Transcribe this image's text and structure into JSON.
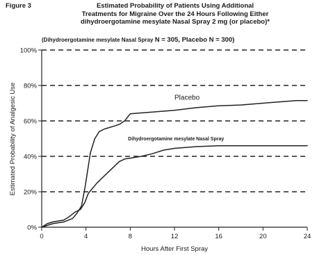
{
  "figure_label": "Figure 3",
  "title_lines": [
    "Estimated Probability of Patients Using Additional",
    "Treatments for Migraine Over the 24 Hours Following Either",
    "dihydroergotamine mesylate  Nasal Spray 2 mg (or placebo)*"
  ],
  "subtitle_small": "(Dihydroergotamine mesylate Nasal Spray",
  "subtitle_big": "N = 305, Placebo N = 300)",
  "chart_data": {
    "type": "line",
    "xlabel": "Hours After First Spray",
    "ylabel": "Estimated Probability of Analgesic Use",
    "xlim": [
      0,
      24
    ],
    "ylim": [
      0,
      100
    ],
    "x_ticks": [
      0,
      4,
      8,
      12,
      16,
      20,
      24
    ],
    "x_tick_labels": [
      "0",
      "4",
      "8",
      "12",
      "16",
      "20",
      "24"
    ],
    "y_ticks": [
      0,
      20,
      40,
      60,
      80,
      100
    ],
    "y_tick_labels": [
      "0%",
      "20%",
      "40%",
      "60%",
      "80%",
      "100%"
    ],
    "grid": "dashed horizontal",
    "series": [
      {
        "name": "Placebo",
        "label_at": [
          12,
          72
        ],
        "x": [
          0,
          0.5,
          1,
          2,
          2.8,
          3.2,
          3.6,
          3.9,
          4.1,
          4.4,
          4.8,
          5.2,
          5.7,
          6.5,
          7,
          7.5,
          8,
          9,
          10,
          12,
          14,
          16,
          18,
          20,
          22,
          23,
          24
        ],
        "y": [
          0,
          1,
          2,
          3,
          5,
          8,
          12,
          22,
          30,
          42,
          50,
          54,
          55.5,
          57,
          58,
          60,
          64,
          64.5,
          65,
          66,
          67.5,
          68.5,
          69,
          70,
          71,
          71.5,
          71.5
        ]
      },
      {
        "name": "Dihydroergotamine mesylate Nasal Spray",
        "label_at": [
          7.8,
          49
        ],
        "x": [
          0,
          0.5,
          1,
          2,
          2.5,
          3,
          3.5,
          3.9,
          4.2,
          4.6,
          5,
          5.5,
          6,
          6.5,
          7,
          7.5,
          8,
          8.5,
          9,
          10,
          11,
          12,
          14,
          16,
          18,
          20,
          22,
          24
        ],
        "y": [
          0,
          2,
          3,
          4,
          6,
          8.5,
          10,
          14,
          19,
          22,
          25,
          28,
          31,
          34,
          37,
          38.5,
          39,
          39.5,
          40,
          41.5,
          43.5,
          44.5,
          45.5,
          46,
          46,
          46,
          46,
          46
        ]
      }
    ]
  }
}
